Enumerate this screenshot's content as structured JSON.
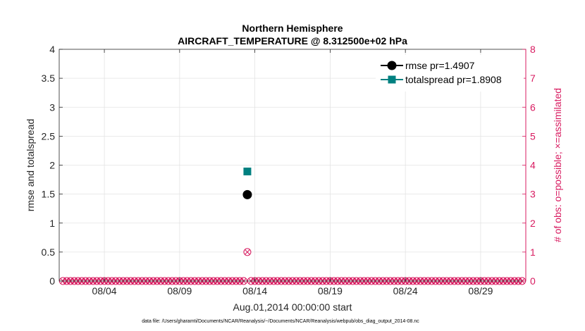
{
  "chart_data": {
    "type": "scatter",
    "title_line1": "Northern Hemisphere",
    "title_line2": "AIRCRAFT_TEMPERATURE @ 8.312500e+02 hPa",
    "xlabel": "Aug.01,2014 00:00:00 start",
    "ylabel_left": "rmse and totalspread",
    "ylabel_right": "# of obs: o=possible; ×=assimilated",
    "footer": "data file: /Users/gharamti/Documents/NCAR/Reanalysis/~/Documents/NCAR/Reanalysis/webpub/obs_diag_output_2014-08.nc",
    "xlim": [
      0,
      31
    ],
    "ylim_left": [
      0,
      4
    ],
    "ylim_right": [
      0,
      8
    ],
    "x_ticks": [
      3,
      8,
      13,
      18,
      23,
      28
    ],
    "x_tick_labels": [
      "08/04",
      "08/09",
      "08/14",
      "08/19",
      "08/24",
      "08/29"
    ],
    "y_ticks_left": [
      0,
      0.5,
      1,
      1.5,
      2,
      2.5,
      3,
      3.5,
      4
    ],
    "y_tick_labels_left": [
      "0",
      "0.5",
      "1",
      "1.5",
      "2",
      "2.5",
      "3",
      "3.5",
      "4"
    ],
    "y_ticks_right": [
      0,
      1,
      2,
      3,
      4,
      5,
      6,
      7,
      8
    ],
    "y_tick_labels_right": [
      "0",
      "1",
      "2",
      "3",
      "4",
      "5",
      "6",
      "7",
      "8"
    ],
    "grid": true,
    "legend_position": "top-right",
    "series": [
      {
        "name": "rmse pr=1.4907",
        "axis": "left",
        "marker": "circle",
        "color": "#000000",
        "points": [
          {
            "x": 12.5,
            "y": 1.4907
          }
        ]
      },
      {
        "name": "totalspread pr=1.8908",
        "axis": "left",
        "marker": "square",
        "color": "#008080",
        "points": [
          {
            "x": 12.5,
            "y": 1.8908
          }
        ]
      }
    ],
    "obs_counts": {
      "axis": "right",
      "color": "#d81b60",
      "x_start": 0.25,
      "x_step": 0.25,
      "count": 123,
      "nonzero": [
        {
          "x": 12.5,
          "possible": 1,
          "assimilated": 1
        }
      ]
    }
  }
}
